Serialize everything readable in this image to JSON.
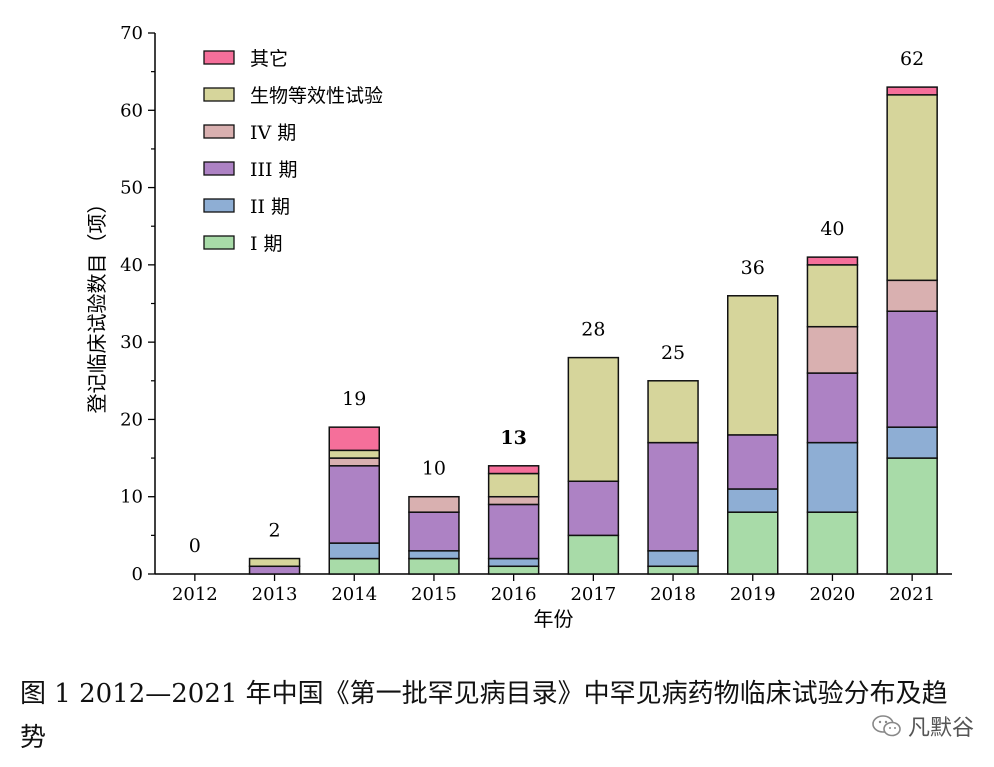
{
  "chart_data": {
    "type": "bar",
    "stacked": true,
    "ylabel": "登记临床试验数目（项）",
    "xlabel": "年份",
    "ylim": [
      0,
      70
    ],
    "yticks": [
      0,
      10,
      20,
      30,
      40,
      50,
      60,
      70
    ],
    "categories": [
      "2012",
      "2013",
      "2014",
      "2015",
      "2016",
      "2017",
      "2018",
      "2019",
      "2020",
      "2021"
    ],
    "totals_labels": [
      "0",
      "2",
      "19",
      "10",
      "13",
      "28",
      "25",
      "36",
      "40",
      "62"
    ],
    "series": [
      {
        "name": "I 期",
        "color": "#a8dba8",
        "values": [
          0,
          0,
          2,
          2,
          1,
          5,
          1,
          8,
          8,
          15
        ]
      },
      {
        "name": "II 期",
        "color": "#8eaed4",
        "values": [
          0,
          0,
          2,
          1,
          1,
          0,
          2,
          3,
          9,
          4
        ]
      },
      {
        "name": "III 期",
        "color": "#ad82c4",
        "values": [
          0,
          1,
          10,
          5,
          7,
          7,
          14,
          7,
          9,
          15
        ]
      },
      {
        "name": "IV 期",
        "color": "#d9b0b0",
        "values": [
          0,
          0,
          1,
          2,
          1,
          0,
          0,
          0,
          6,
          4
        ]
      },
      {
        "name": "生物等效性试验",
        "color": "#d6d59b",
        "values": [
          0,
          1,
          1,
          0,
          3,
          16,
          8,
          18,
          8,
          24
        ]
      },
      {
        "name": "其它",
        "color": "#f56f9a",
        "values": [
          0,
          0,
          3,
          0,
          1,
          0,
          0,
          0,
          1,
          1
        ]
      }
    ],
    "legend_order": [
      "其它",
      "生物等效性试验",
      "IV 期",
      "III 期",
      "II 期",
      "I 期"
    ]
  },
  "caption": "图 1 2012—2021 年中国《第一批罕见病目录》中罕见病药物临床试验分布及趋势",
  "watermark": "凡默谷"
}
